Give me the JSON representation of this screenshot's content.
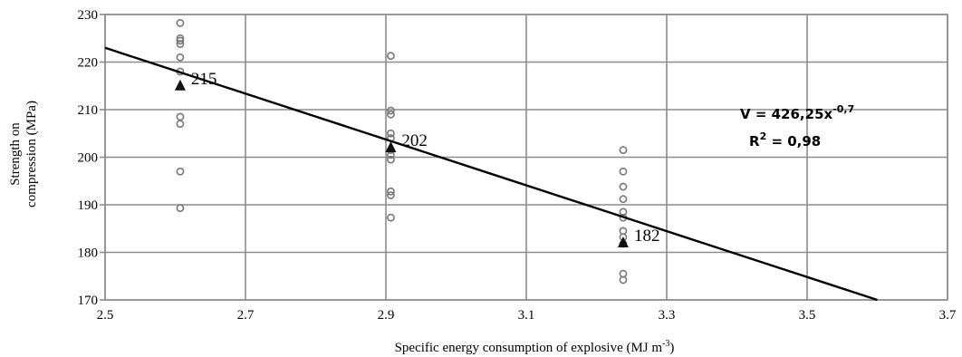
{
  "chart_data": {
    "type": "scatter",
    "title": "",
    "xlabel": "Specific energy consumption of explosive (MJ m",
    "xlabel_superscript": "-3",
    "xlabel_suffix": ")",
    "ylabel_lines": [
      "Strength on",
      "compression (MPa)"
    ],
    "xlim": [
      2.5,
      3.7
    ],
    "ylim": [
      170,
      230
    ],
    "xticks": [
      "2.5",
      "2.7",
      "2.9",
      "3.1",
      "3.3",
      "3.5",
      "3.7"
    ],
    "yticks": [
      "170",
      "180",
      "190",
      "200",
      "210",
      "220",
      "230"
    ],
    "grid": true,
    "series": [
      {
        "x": [
          2.607,
          2.607,
          2.607,
          2.607,
          2.607,
          2.607,
          2.607,
          2.607,
          2.607,
          2.607,
          2.907,
          2.907,
          2.907,
          2.907,
          2.907,
          2.907,
          2.907,
          2.907,
          2.907,
          2.907,
          2.907,
          3.238,
          3.238,
          3.238,
          3.238,
          3.238,
          3.238,
          3.238,
          3.238,
          3.238,
          3.238,
          3.238
        ],
        "y": [
          228.2,
          225.0,
          224.5,
          223.8,
          221.0,
          218.0,
          208.5,
          207.0,
          197.0,
          189.3,
          221.3,
          209.8,
          209.0,
          205.0,
          204.0,
          201.5,
          199.5,
          192.8,
          192.0,
          187.3,
          200.5,
          201.5,
          197.0,
          193.8,
          191.2,
          188.5,
          187.3,
          184.5,
          183.2,
          175.5,
          174.2,
          181.8
        ]
      },
      {
        "x": [
          2.607,
          2.907,
          3.238
        ],
        "y": [
          215,
          202,
          182
        ],
        "labels": [
          "215",
          "202",
          "182"
        ]
      }
    ],
    "trendline": {
      "x_range": [
        2.5,
        3.6
      ],
      "y_range": [
        223,
        170
      ]
    },
    "annotations": {
      "equation": "V = 426,25x",
      "equation_exponent": "-0,7",
      "r2_prefix": "R",
      "r2_superscript": "2",
      "r2_value": " = 0,98"
    }
  }
}
